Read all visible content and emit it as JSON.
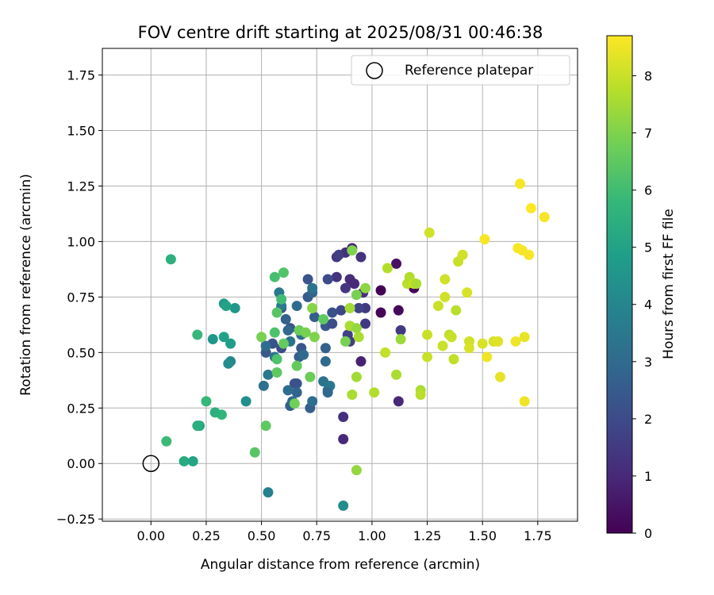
{
  "chart_data": {
    "type": "scatter",
    "title": "FOV centre drift starting at 2025/08/31 00:46:38",
    "xlabel": "Angular distance from reference (arcmin)",
    "ylabel": "Rotation from reference (arcmin)",
    "xlim": [
      -0.22,
      1.93
    ],
    "ylim": [
      -0.26,
      1.87
    ],
    "xticks": [
      0.0,
      0.25,
      0.5,
      0.75,
      1.0,
      1.25,
      1.5,
      1.75
    ],
    "xtick_labels": [
      "0.00",
      "0.25",
      "0.50",
      "0.75",
      "1.00",
      "1.25",
      "1.50",
      "1.75"
    ],
    "yticks": [
      -0.25,
      0.0,
      0.25,
      0.5,
      0.75,
      1.0,
      1.25,
      1.5,
      1.75
    ],
    "ytick_labels": [
      "−0.25",
      "0.00",
      "0.25",
      "0.50",
      "0.75",
      "1.00",
      "1.25",
      "1.50",
      "1.75"
    ],
    "grid": true,
    "legend": {
      "label": "Reference platepar",
      "placement": "upper right",
      "marker": "open-circle"
    },
    "reference_point": {
      "x": 0.0,
      "y": 0.0
    },
    "colorbar": {
      "label": "Hours from first FF file",
      "min": 0,
      "max": 8.7,
      "ticks": [
        0,
        1,
        2,
        3,
        4,
        5,
        6,
        7,
        8
      ],
      "tick_labels": [
        "0",
        "1",
        "2",
        "3",
        "4",
        "5",
        "6",
        "7",
        "8"
      ],
      "colormap": "viridis"
    },
    "colormap_stops": [
      "#440154",
      "#482878",
      "#3e4989",
      "#31688e",
      "#26828e",
      "#1f9e89",
      "#35b779",
      "#6ece58",
      "#b5de2b",
      "#fde725"
    ],
    "points": [
      {
        "x": 1.04,
        "y": 0.78,
        "t": 0.0
      },
      {
        "x": 1.04,
        "y": 0.68,
        "t": 0.1
      },
      {
        "x": 1.12,
        "y": 0.69,
        "t": 0.2
      },
      {
        "x": 1.19,
        "y": 0.79,
        "t": 0.1
      },
      {
        "x": 1.11,
        "y": 0.9,
        "t": 0.4
      },
      {
        "x": 1.12,
        "y": 0.28,
        "t": 1.0
      },
      {
        "x": 1.13,
        "y": 0.6,
        "t": 1.5
      },
      {
        "x": 0.87,
        "y": 0.11,
        "t": 1.0
      },
      {
        "x": 0.87,
        "y": 0.21,
        "t": 1.2
      },
      {
        "x": 0.95,
        "y": 0.46,
        "t": 0.8
      },
      {
        "x": 0.91,
        "y": 0.97,
        "t": 0.8
      },
      {
        "x": 0.95,
        "y": 0.93,
        "t": 1.3
      },
      {
        "x": 0.88,
        "y": 0.95,
        "t": 1.2
      },
      {
        "x": 0.84,
        "y": 0.93,
        "t": 1.5
      },
      {
        "x": 0.85,
        "y": 0.94,
        "t": 1.6
      },
      {
        "x": 0.9,
        "y": 0.83,
        "t": 1.1
      },
      {
        "x": 0.92,
        "y": 0.81,
        "t": 1.0
      },
      {
        "x": 0.84,
        "y": 0.84,
        "t": 1.3
      },
      {
        "x": 0.88,
        "y": 0.79,
        "t": 1.4
      },
      {
        "x": 0.96,
        "y": 0.77,
        "t": 1.2
      },
      {
        "x": 0.97,
        "y": 0.7,
        "t": 1.5
      },
      {
        "x": 0.94,
        "y": 0.7,
        "t": 1.8
      },
      {
        "x": 0.86,
        "y": 0.69,
        "t": 1.9
      },
      {
        "x": 0.8,
        "y": 0.83,
        "t": 2.0
      },
      {
        "x": 0.82,
        "y": 0.68,
        "t": 2.2
      },
      {
        "x": 0.79,
        "y": 0.62,
        "t": 2.4
      },
      {
        "x": 0.89,
        "y": 0.58,
        "t": 1.7
      },
      {
        "x": 0.9,
        "y": 0.55,
        "t": 1.6
      },
      {
        "x": 0.97,
        "y": 0.63,
        "t": 1.5
      },
      {
        "x": 0.82,
        "y": 0.63,
        "t": 2.1
      },
      {
        "x": 0.71,
        "y": 0.83,
        "t": 2.3
      },
      {
        "x": 0.71,
        "y": 0.75,
        "t": 2.5
      },
      {
        "x": 0.73,
        "y": 0.77,
        "t": 2.8
      },
      {
        "x": 0.74,
        "y": 0.66,
        "t": 2.6
      },
      {
        "x": 0.68,
        "y": 0.52,
        "t": 2.4
      },
      {
        "x": 0.63,
        "y": 0.61,
        "t": 2.2
      },
      {
        "x": 0.59,
        "y": 0.7,
        "t": 2.1
      },
      {
        "x": 0.59,
        "y": 0.52,
        "t": 2.0
      },
      {
        "x": 0.55,
        "y": 0.54,
        "t": 2.2
      },
      {
        "x": 0.52,
        "y": 0.5,
        "t": 2.4
      },
      {
        "x": 0.61,
        "y": 0.65,
        "t": 2.7
      },
      {
        "x": 0.62,
        "y": 0.6,
        "t": 2.9
      },
      {
        "x": 0.66,
        "y": 0.71,
        "t": 3.0
      },
      {
        "x": 0.67,
        "y": 0.48,
        "t": 2.6
      },
      {
        "x": 0.69,
        "y": 0.49,
        "t": 3.0
      },
      {
        "x": 0.68,
        "y": 0.58,
        "t": 3.2
      },
      {
        "x": 0.63,
        "y": 0.55,
        "t": 3.3
      },
      {
        "x": 0.58,
        "y": 0.77,
        "t": 3.5
      },
      {
        "x": 0.59,
        "y": 0.71,
        "t": 3.6
      },
      {
        "x": 0.73,
        "y": 0.79,
        "t": 3.3
      },
      {
        "x": 0.79,
        "y": 0.52,
        "t": 2.7
      },
      {
        "x": 0.79,
        "y": 0.46,
        "t": 3.0
      },
      {
        "x": 0.66,
        "y": 0.36,
        "t": 2.5
      },
      {
        "x": 0.65,
        "y": 0.36,
        "t": 2.2
      },
      {
        "x": 0.66,
        "y": 0.32,
        "t": 2.8
      },
      {
        "x": 0.63,
        "y": 0.26,
        "t": 2.6
      },
      {
        "x": 0.64,
        "y": 0.28,
        "t": 2.9
      },
      {
        "x": 0.62,
        "y": 0.33,
        "t": 3.1
      },
      {
        "x": 0.72,
        "y": 0.25,
        "t": 2.6
      },
      {
        "x": 0.73,
        "y": 0.28,
        "t": 3.1
      },
      {
        "x": 0.78,
        "y": 0.37,
        "t": 3.3
      },
      {
        "x": 0.8,
        "y": 0.33,
        "t": 3.0
      },
      {
        "x": 0.81,
        "y": 0.35,
        "t": 3.5
      },
      {
        "x": 0.8,
        "y": 0.32,
        "t": 2.9
      },
      {
        "x": 0.51,
        "y": 0.35,
        "t": 3.2
      },
      {
        "x": 0.53,
        "y": 0.4,
        "t": 3.5
      },
      {
        "x": 0.56,
        "y": 0.48,
        "t": 3.4
      },
      {
        "x": 0.52,
        "y": 0.53,
        "t": 3.1
      },
      {
        "x": 0.53,
        "y": -0.13,
        "t": 3.8
      },
      {
        "x": 0.87,
        "y": -0.19,
        "t": 4.2
      },
      {
        "x": 0.43,
        "y": 0.28,
        "t": 4.3
      },
      {
        "x": 0.38,
        "y": 0.7,
        "t": 4.6
      },
      {
        "x": 0.36,
        "y": 0.54,
        "t": 4.8
      },
      {
        "x": 0.36,
        "y": 0.46,
        "t": 4.0
      },
      {
        "x": 0.35,
        "y": 0.45,
        "t": 4.2
      },
      {
        "x": 0.33,
        "y": 0.72,
        "t": 4.7
      },
      {
        "x": 0.34,
        "y": 0.71,
        "t": 5.0
      },
      {
        "x": 0.33,
        "y": 0.57,
        "t": 4.9
      },
      {
        "x": 0.28,
        "y": 0.56,
        "t": 4.6
      },
      {
        "x": 0.32,
        "y": 0.22,
        "t": 5.7
      },
      {
        "x": 0.29,
        "y": 0.23,
        "t": 5.5
      },
      {
        "x": 0.25,
        "y": 0.28,
        "t": 5.8
      },
      {
        "x": 0.22,
        "y": 0.17,
        "t": 5.2
      },
      {
        "x": 0.21,
        "y": 0.17,
        "t": 5.4
      },
      {
        "x": 0.15,
        "y": 0.01,
        "t": 5.3
      },
      {
        "x": 0.19,
        "y": 0.01,
        "t": 5.1
      },
      {
        "x": 0.07,
        "y": 0.1,
        "t": 5.9
      },
      {
        "x": 0.09,
        "y": 0.92,
        "t": 5.5
      },
      {
        "x": 0.21,
        "y": 0.58,
        "t": 5.8
      },
      {
        "x": 0.47,
        "y": 0.05,
        "t": 6.4
      },
      {
        "x": 0.52,
        "y": 0.17,
        "t": 6.5
      },
      {
        "x": 0.5,
        "y": 0.57,
        "t": 6.9
      },
      {
        "x": 0.56,
        "y": 0.59,
        "t": 6.2
      },
      {
        "x": 0.56,
        "y": 0.84,
        "t": 6.1
      },
      {
        "x": 0.6,
        "y": 0.86,
        "t": 6.3
      },
      {
        "x": 0.59,
        "y": 0.74,
        "t": 6.0
      },
      {
        "x": 0.57,
        "y": 0.68,
        "t": 6.4
      },
      {
        "x": 0.57,
        "y": 0.47,
        "t": 6.2
      },
      {
        "x": 0.57,
        "y": 0.41,
        "t": 6.5
      },
      {
        "x": 0.6,
        "y": 0.54,
        "t": 6.6
      },
      {
        "x": 0.65,
        "y": 0.27,
        "t": 6.8
      },
      {
        "x": 0.66,
        "y": 0.44,
        "t": 6.6
      },
      {
        "x": 0.67,
        "y": 0.6,
        "t": 6.7
      },
      {
        "x": 0.7,
        "y": 0.59,
        "t": 6.9
      },
      {
        "x": 0.72,
        "y": 0.39,
        "t": 6.7
      },
      {
        "x": 0.74,
        "y": 0.57,
        "t": 7.0
      },
      {
        "x": 0.73,
        "y": 0.7,
        "t": 7.1
      },
      {
        "x": 0.78,
        "y": 0.65,
        "t": 6.5
      },
      {
        "x": 0.88,
        "y": 0.55,
        "t": 6.9
      },
      {
        "x": 0.91,
        "y": 0.96,
        "t": 7.0
      },
      {
        "x": 0.93,
        "y": 0.76,
        "t": 6.9
      },
      {
        "x": 0.97,
        "y": 0.79,
        "t": 7.2
      },
      {
        "x": 0.9,
        "y": 0.7,
        "t": 7.5
      },
      {
        "x": 0.9,
        "y": 0.62,
        "t": 7.6
      },
      {
        "x": 0.93,
        "y": 0.61,
        "t": 7.3
      },
      {
        "x": 0.94,
        "y": 0.57,
        "t": 7.6
      },
      {
        "x": 0.91,
        "y": 0.31,
        "t": 7.6
      },
      {
        "x": 0.93,
        "y": 0.39,
        "t": 7.5
      },
      {
        "x": 0.93,
        "y": -0.03,
        "t": 7.3
      },
      {
        "x": 1.01,
        "y": 0.32,
        "t": 7.7
      },
      {
        "x": 1.06,
        "y": 0.5,
        "t": 7.9
      },
      {
        "x": 1.07,
        "y": 0.88,
        "t": 7.7
      },
      {
        "x": 1.11,
        "y": 0.4,
        "t": 7.6
      },
      {
        "x": 1.13,
        "y": 0.56,
        "t": 7.4
      },
      {
        "x": 1.16,
        "y": 0.81,
        "t": 7.8
      },
      {
        "x": 1.17,
        "y": 0.84,
        "t": 7.7
      },
      {
        "x": 1.19,
        "y": 0.81,
        "t": 8.0
      },
      {
        "x": 1.2,
        "y": 0.81,
        "t": 7.6
      },
      {
        "x": 1.22,
        "y": 0.33,
        "t": 7.6
      },
      {
        "x": 1.22,
        "y": 0.31,
        "t": 7.8
      },
      {
        "x": 1.25,
        "y": 0.48,
        "t": 8.0
      },
      {
        "x": 1.25,
        "y": 0.58,
        "t": 8.0
      },
      {
        "x": 1.26,
        "y": 1.04,
        "t": 8.1
      },
      {
        "x": 1.3,
        "y": 0.71,
        "t": 8.0
      },
      {
        "x": 1.32,
        "y": 0.53,
        "t": 8.0
      },
      {
        "x": 1.33,
        "y": 0.75,
        "t": 8.1
      },
      {
        "x": 1.33,
        "y": 0.83,
        "t": 8.1
      },
      {
        "x": 1.35,
        "y": 0.58,
        "t": 7.8
      },
      {
        "x": 1.36,
        "y": 0.57,
        "t": 8.0
      },
      {
        "x": 1.37,
        "y": 0.47,
        "t": 7.9
      },
      {
        "x": 1.38,
        "y": 0.69,
        "t": 7.8
      },
      {
        "x": 1.39,
        "y": 0.91,
        "t": 8.0
      },
      {
        "x": 1.41,
        "y": 0.94,
        "t": 8.1
      },
      {
        "x": 1.43,
        "y": 0.77,
        "t": 8.2
      },
      {
        "x": 1.44,
        "y": 0.55,
        "t": 8.1
      },
      {
        "x": 1.44,
        "y": 0.52,
        "t": 8.2
      },
      {
        "x": 1.5,
        "y": 0.54,
        "t": 8.2
      },
      {
        "x": 1.51,
        "y": 1.01,
        "t": 8.6
      },
      {
        "x": 1.52,
        "y": 0.48,
        "t": 8.5
      },
      {
        "x": 1.55,
        "y": 0.55,
        "t": 8.2
      },
      {
        "x": 1.57,
        "y": 0.55,
        "t": 8.3
      },
      {
        "x": 1.58,
        "y": 0.39,
        "t": 8.4
      },
      {
        "x": 1.65,
        "y": 0.55,
        "t": 8.5
      },
      {
        "x": 1.66,
        "y": 0.97,
        "t": 8.6
      },
      {
        "x": 1.67,
        "y": 1.26,
        "t": 8.6
      },
      {
        "x": 1.68,
        "y": 0.96,
        "t": 8.6
      },
      {
        "x": 1.69,
        "y": 0.57,
        "t": 8.4
      },
      {
        "x": 1.69,
        "y": 0.28,
        "t": 8.5
      },
      {
        "x": 1.71,
        "y": 0.94,
        "t": 8.6
      },
      {
        "x": 1.72,
        "y": 1.15,
        "t": 8.7
      },
      {
        "x": 1.78,
        "y": 1.11,
        "t": 8.6
      }
    ]
  }
}
